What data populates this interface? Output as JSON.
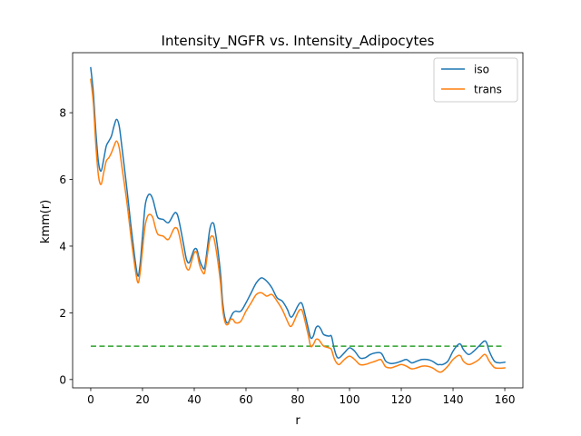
{
  "chart_data": {
    "type": "line",
    "title": "Intensity_NGFR vs. Intensity_Adipocytes",
    "xlabel": "r",
    "ylabel": "kmm(r)",
    "xlim": [
      -7,
      167
    ],
    "ylim": [
      -0.25,
      9.8
    ],
    "xticks": [
      0,
      20,
      40,
      60,
      80,
      100,
      120,
      140,
      160
    ],
    "yticks": [
      0,
      2,
      4,
      6,
      8
    ],
    "grid": false,
    "legend_position": "top-right",
    "reference_line": {
      "y": 1.0,
      "color": "#2ca02c",
      "style": "dashed"
    },
    "series": [
      {
        "name": "iso",
        "color": "#1f77b4",
        "points": [
          [
            0,
            9.35
          ],
          [
            1,
            8.6
          ],
          [
            2,
            7.4
          ],
          [
            3,
            6.5
          ],
          [
            4,
            6.25
          ],
          [
            5,
            6.6
          ],
          [
            6,
            7.0
          ],
          [
            7,
            7.15
          ],
          [
            8,
            7.3
          ],
          [
            9,
            7.6
          ],
          [
            10,
            7.8
          ],
          [
            11,
            7.6
          ],
          [
            12,
            7.0
          ],
          [
            14,
            5.7
          ],
          [
            16,
            4.3
          ],
          [
            18,
            3.15
          ],
          [
            19,
            3.4
          ],
          [
            20,
            4.3
          ],
          [
            21,
            5.2
          ],
          [
            22,
            5.5
          ],
          [
            23,
            5.55
          ],
          [
            24,
            5.4
          ],
          [
            25,
            5.1
          ],
          [
            26,
            4.85
          ],
          [
            28,
            4.8
          ],
          [
            30,
            4.7
          ],
          [
            32,
            4.95
          ],
          [
            33,
            5.0
          ],
          [
            34,
            4.8
          ],
          [
            36,
            4.0
          ],
          [
            37,
            3.6
          ],
          [
            38,
            3.5
          ],
          [
            39,
            3.7
          ],
          [
            40,
            3.9
          ],
          [
            41,
            3.9
          ],
          [
            42,
            3.6
          ],
          [
            43,
            3.4
          ],
          [
            44,
            3.35
          ],
          [
            45,
            3.9
          ],
          [
            46,
            4.5
          ],
          [
            47,
            4.7
          ],
          [
            48,
            4.5
          ],
          [
            50,
            3.3
          ],
          [
            51,
            2.3
          ],
          [
            52,
            1.8
          ],
          [
            53,
            1.7
          ],
          [
            54,
            1.85
          ],
          [
            55,
            2.0
          ],
          [
            56,
            2.05
          ],
          [
            58,
            2.05
          ],
          [
            60,
            2.3
          ],
          [
            62,
            2.6
          ],
          [
            64,
            2.9
          ],
          [
            66,
            3.05
          ],
          [
            68,
            2.95
          ],
          [
            70,
            2.75
          ],
          [
            72,
            2.45
          ],
          [
            74,
            2.35
          ],
          [
            76,
            2.1
          ],
          [
            77,
            1.9
          ],
          [
            78,
            1.9
          ],
          [
            80,
            2.2
          ],
          [
            81,
            2.3
          ],
          [
            82,
            2.2
          ],
          [
            84,
            1.55
          ],
          [
            85,
            1.25
          ],
          [
            86,
            1.3
          ],
          [
            87,
            1.55
          ],
          [
            88,
            1.6
          ],
          [
            89,
            1.5
          ],
          [
            90,
            1.35
          ],
          [
            92,
            1.3
          ],
          [
            93,
            1.3
          ],
          [
            94,
            0.95
          ],
          [
            95,
            0.7
          ],
          [
            96,
            0.65
          ],
          [
            98,
            0.8
          ],
          [
            100,
            0.95
          ],
          [
            102,
            0.85
          ],
          [
            104,
            0.65
          ],
          [
            106,
            0.65
          ],
          [
            108,
            0.75
          ],
          [
            110,
            0.8
          ],
          [
            112,
            0.8
          ],
          [
            113,
            0.7
          ],
          [
            114,
            0.55
          ],
          [
            116,
            0.48
          ],
          [
            118,
            0.5
          ],
          [
            120,
            0.55
          ],
          [
            122,
            0.6
          ],
          [
            124,
            0.5
          ],
          [
            126,
            0.55
          ],
          [
            128,
            0.6
          ],
          [
            130,
            0.6
          ],
          [
            132,
            0.55
          ],
          [
            134,
            0.45
          ],
          [
            135,
            0.45
          ],
          [
            136,
            0.45
          ],
          [
            138,
            0.55
          ],
          [
            140,
            0.85
          ],
          [
            142,
            1.05
          ],
          [
            143,
            1.05
          ],
          [
            144,
            0.9
          ],
          [
            146,
            0.75
          ],
          [
            148,
            0.85
          ],
          [
            150,
            1.0
          ],
          [
            152,
            1.15
          ],
          [
            153,
            1.1
          ],
          [
            154,
            0.85
          ],
          [
            156,
            0.55
          ],
          [
            158,
            0.5
          ],
          [
            160,
            0.52
          ]
        ]
      },
      {
        "name": "trans",
        "color": "#ff7f0e",
        "points": [
          [
            0,
            9.0
          ],
          [
            1,
            8.3
          ],
          [
            2,
            7.0
          ],
          [
            3,
            6.1
          ],
          [
            4,
            5.85
          ],
          [
            5,
            6.2
          ],
          [
            6,
            6.55
          ],
          [
            7,
            6.65
          ],
          [
            8,
            6.8
          ],
          [
            9,
            7.0
          ],
          [
            10,
            7.15
          ],
          [
            11,
            6.95
          ],
          [
            12,
            6.4
          ],
          [
            14,
            5.3
          ],
          [
            16,
            4.0
          ],
          [
            18,
            2.95
          ],
          [
            19,
            3.15
          ],
          [
            20,
            3.9
          ],
          [
            21,
            4.6
          ],
          [
            22,
            4.9
          ],
          [
            23,
            4.95
          ],
          [
            24,
            4.85
          ],
          [
            25,
            4.55
          ],
          [
            26,
            4.35
          ],
          [
            28,
            4.3
          ],
          [
            30,
            4.2
          ],
          [
            32,
            4.5
          ],
          [
            33,
            4.55
          ],
          [
            34,
            4.4
          ],
          [
            36,
            3.65
          ],
          [
            37,
            3.35
          ],
          [
            38,
            3.3
          ],
          [
            39,
            3.55
          ],
          [
            40,
            3.8
          ],
          [
            41,
            3.8
          ],
          [
            42,
            3.45
          ],
          [
            43,
            3.25
          ],
          [
            44,
            3.2
          ],
          [
            45,
            3.7
          ],
          [
            46,
            4.2
          ],
          [
            47,
            4.3
          ],
          [
            48,
            4.1
          ],
          [
            50,
            3.0
          ],
          [
            51,
            2.1
          ],
          [
            52,
            1.7
          ],
          [
            53,
            1.65
          ],
          [
            54,
            1.8
          ],
          [
            55,
            1.8
          ],
          [
            56,
            1.7
          ],
          [
            58,
            1.75
          ],
          [
            60,
            2.05
          ],
          [
            62,
            2.3
          ],
          [
            64,
            2.55
          ],
          [
            66,
            2.6
          ],
          [
            68,
            2.5
          ],
          [
            70,
            2.55
          ],
          [
            72,
            2.35
          ],
          [
            74,
            2.1
          ],
          [
            76,
            1.75
          ],
          [
            77,
            1.6
          ],
          [
            78,
            1.65
          ],
          [
            80,
            2.0
          ],
          [
            81,
            2.1
          ],
          [
            82,
            2.0
          ],
          [
            84,
            1.35
          ],
          [
            85,
            1.0
          ],
          [
            86,
            1.05
          ],
          [
            87,
            1.2
          ],
          [
            88,
            1.2
          ],
          [
            89,
            1.1
          ],
          [
            90,
            1.0
          ],
          [
            92,
            0.95
          ],
          [
            93,
            0.9
          ],
          [
            94,
            0.65
          ],
          [
            95,
            0.5
          ],
          [
            96,
            0.45
          ],
          [
            98,
            0.6
          ],
          [
            100,
            0.7
          ],
          [
            102,
            0.6
          ],
          [
            104,
            0.45
          ],
          [
            106,
            0.45
          ],
          [
            108,
            0.5
          ],
          [
            110,
            0.55
          ],
          [
            112,
            0.6
          ],
          [
            113,
            0.5
          ],
          [
            114,
            0.38
          ],
          [
            116,
            0.35
          ],
          [
            118,
            0.4
          ],
          [
            120,
            0.45
          ],
          [
            122,
            0.4
          ],
          [
            124,
            0.32
          ],
          [
            126,
            0.35
          ],
          [
            128,
            0.4
          ],
          [
            130,
            0.4
          ],
          [
            132,
            0.35
          ],
          [
            134,
            0.25
          ],
          [
            135,
            0.22
          ],
          [
            136,
            0.25
          ],
          [
            138,
            0.4
          ],
          [
            140,
            0.6
          ],
          [
            142,
            0.72
          ],
          [
            143,
            0.7
          ],
          [
            144,
            0.55
          ],
          [
            146,
            0.45
          ],
          [
            148,
            0.5
          ],
          [
            150,
            0.6
          ],
          [
            152,
            0.75
          ],
          [
            153,
            0.7
          ],
          [
            154,
            0.55
          ],
          [
            156,
            0.36
          ],
          [
            158,
            0.34
          ],
          [
            160,
            0.35
          ]
        ]
      }
    ]
  }
}
